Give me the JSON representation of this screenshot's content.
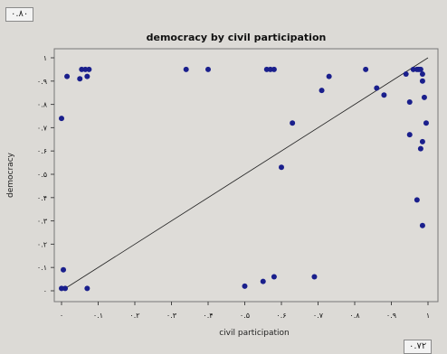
{
  "badges": {
    "top_left": "۰.۸۰",
    "bottom_right": "۰.۷۲"
  },
  "chart_data": {
    "type": "scatter",
    "title": "democracy by  civil participation",
    "xlabel": "civil participation",
    "ylabel": "democracy",
    "xlim": [
      0,
      1
    ],
    "ylim": [
      0,
      1
    ],
    "x_ticks": [
      {
        "v": 0,
        "label": "۰"
      },
      {
        "v": 0.1,
        "label": "۰.۱"
      },
      {
        "v": 0.2,
        "label": "۰.۲"
      },
      {
        "v": 0.3,
        "label": "۰.۳"
      },
      {
        "v": 0.4,
        "label": "۰.۴"
      },
      {
        "v": 0.5,
        "label": "۰.۵"
      },
      {
        "v": 0.6,
        "label": "۰.۶"
      },
      {
        "v": 0.7,
        "label": "۰.۷"
      },
      {
        "v": 0.8,
        "label": "۰.۸"
      },
      {
        "v": 0.9,
        "label": "۰.۹"
      },
      {
        "v": 1,
        "label": "۱"
      }
    ],
    "y_ticks": [
      {
        "v": 0,
        "label": "۰"
      },
      {
        "v": 0.1,
        "label": "۰.۱"
      },
      {
        "v": 0.2,
        "label": "۰.۲"
      },
      {
        "v": 0.3,
        "label": "۰.۳"
      },
      {
        "v": 0.4,
        "label": "۰.۴"
      },
      {
        "v": 0.5,
        "label": "۰.۵"
      },
      {
        "v": 0.6,
        "label": "۰.۶"
      },
      {
        "v": 0.7,
        "label": "۰.۷"
      },
      {
        "v": 0.8,
        "label": "۰.۸"
      },
      {
        "v": 0.9,
        "label": "۰.۹"
      },
      {
        "v": 1,
        "label": "۱"
      }
    ],
    "fit_line": {
      "x": [
        0,
        1
      ],
      "y": [
        0,
        1
      ]
    },
    "series": [
      {
        "color": "#1a1f8c",
        "points": [
          [
            0.0,
            0.74
          ],
          [
            0.005,
            0.09
          ],
          [
            0.0,
            0.01
          ],
          [
            0.01,
            0.01
          ],
          [
            0.015,
            0.92
          ],
          [
            0.05,
            0.91
          ],
          [
            0.055,
            0.95
          ],
          [
            0.065,
            0.95
          ],
          [
            0.07,
            0.92
          ],
          [
            0.075,
            0.95
          ],
          [
            0.07,
            0.01
          ],
          [
            0.34,
            0.95
          ],
          [
            0.4,
            0.95
          ],
          [
            0.56,
            0.95
          ],
          [
            0.57,
            0.95
          ],
          [
            0.58,
            0.95
          ],
          [
            0.5,
            0.02
          ],
          [
            0.55,
            0.04
          ],
          [
            0.58,
            0.06
          ],
          [
            0.6,
            0.53
          ],
          [
            0.63,
            0.72
          ],
          [
            0.69,
            0.06
          ],
          [
            0.71,
            0.86
          ],
          [
            0.73,
            0.92
          ],
          [
            0.83,
            0.95
          ],
          [
            0.86,
            0.87
          ],
          [
            0.88,
            0.84
          ],
          [
            0.94,
            0.93
          ],
          [
            0.95,
            0.81
          ],
          [
            0.95,
            0.67
          ],
          [
            0.96,
            0.95
          ],
          [
            0.97,
            0.95
          ],
          [
            0.975,
            0.95
          ],
          [
            0.98,
            0.95
          ],
          [
            0.985,
            0.93
          ],
          [
            0.985,
            0.9
          ],
          [
            0.99,
            0.83
          ],
          [
            0.995,
            0.72
          ],
          [
            0.985,
            0.64
          ],
          [
            0.98,
            0.61
          ],
          [
            0.97,
            0.39
          ],
          [
            0.985,
            0.28
          ]
        ]
      }
    ]
  }
}
